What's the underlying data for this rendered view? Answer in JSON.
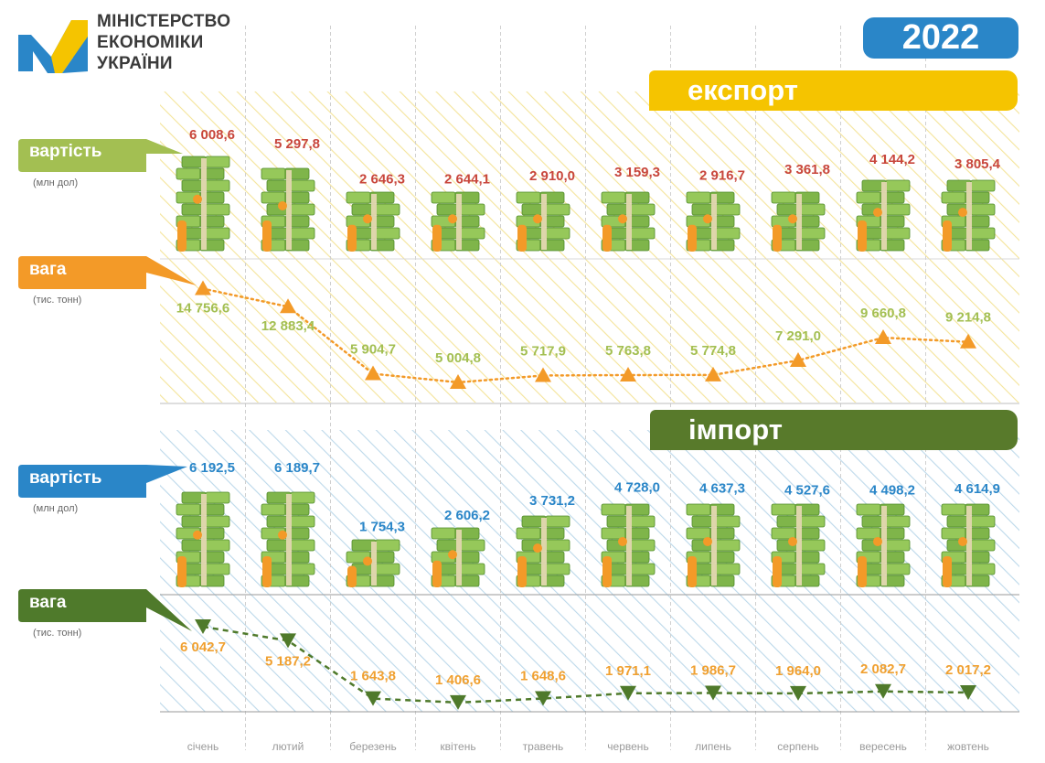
{
  "header": {
    "logo_lines": [
      "МІНІСТЕРСТВО",
      "ЕКОНОМІКИ",
      "УКРАЇНИ"
    ],
    "year": "2022"
  },
  "export": {
    "title": "експорт",
    "value_label": "вартість",
    "value_unit": "(млн дол)",
    "weight_label": "вага",
    "weight_unit": "(тис. тонн)"
  },
  "import": {
    "title": "імпорт",
    "value_label": "вартість",
    "value_unit": "(млн дол)",
    "weight_label": "вага",
    "weight_unit": "(тис. тонн)"
  },
  "colors": {
    "export_value_text": "#c8463c",
    "export_weight_text": "#a3bf52",
    "export_marker": "#f39a28",
    "import_value_text": "#2a86c8",
    "import_weight_text": "#f0a030",
    "import_marker": "#4f7a2b",
    "export_banner": "#f5c400",
    "import_banner": "#587a2b",
    "year_badge": "#2a86c8",
    "label_green": "#a3bf52",
    "label_orange": "#f39a28",
    "label_blue": "#2a86c8",
    "label_darkgreen": "#4f7a2b"
  },
  "chart_data": {
    "type": "line",
    "categories": [
      "січень",
      "лютий",
      "березень",
      "квітень",
      "травень",
      "червень",
      "липень",
      "серпень",
      "вересень",
      "жовтень"
    ],
    "series": [
      {
        "name": "експорт вартість",
        "values": [
          6008.6,
          5297.8,
          2646.3,
          2644.1,
          2910.0,
          3159.3,
          2916.7,
          3361.8,
          4144.2,
          3805.4
        ],
        "labels": [
          "6 008,6",
          "5 297,8",
          "2 646,3",
          "2 644,1",
          "2 910,0",
          "3 159,3",
          "2 916,7",
          "3 361,8",
          "4 144,2",
          "3 805,4"
        ]
      },
      {
        "name": "експорт вага",
        "values": [
          14756.6,
          12883.4,
          5904.7,
          5004.8,
          5717.9,
          5763.8,
          5774.8,
          7291.0,
          9660.8,
          9214.8
        ],
        "labels": [
          "14 756,6",
          "12 883,4",
          "5 904,7",
          "5 004,8",
          "5 717,9",
          "5 763,8",
          "5 774,8",
          "7 291,0",
          "9 660,8",
          "9 214,8"
        ]
      },
      {
        "name": "імпорт вартість",
        "values": [
          6192.5,
          6189.7,
          1754.3,
          2606.2,
          3731.2,
          4728.0,
          4637.3,
          4527.6,
          4498.2,
          4614.9
        ],
        "labels": [
          "6 192,5",
          "6 189,7",
          "1 754,3",
          "2 606,2",
          "3 731,2",
          "4 728,0",
          "4 637,3",
          "4 527,6",
          "4 498,2",
          "4 614,9"
        ]
      },
      {
        "name": "імпорт вага",
        "values": [
          6042.7,
          5187.2,
          1643.8,
          1406.6,
          1648.6,
          1971.1,
          1986.7,
          1964.0,
          2082.7,
          2017.2
        ],
        "labels": [
          "6 042,7",
          "5 187,2",
          "1 643,8",
          "1 406,6",
          "1 648,6",
          "1 971,1",
          "1 986,7",
          "1 964,0",
          "2 082,7",
          "2 017,2"
        ]
      }
    ]
  }
}
